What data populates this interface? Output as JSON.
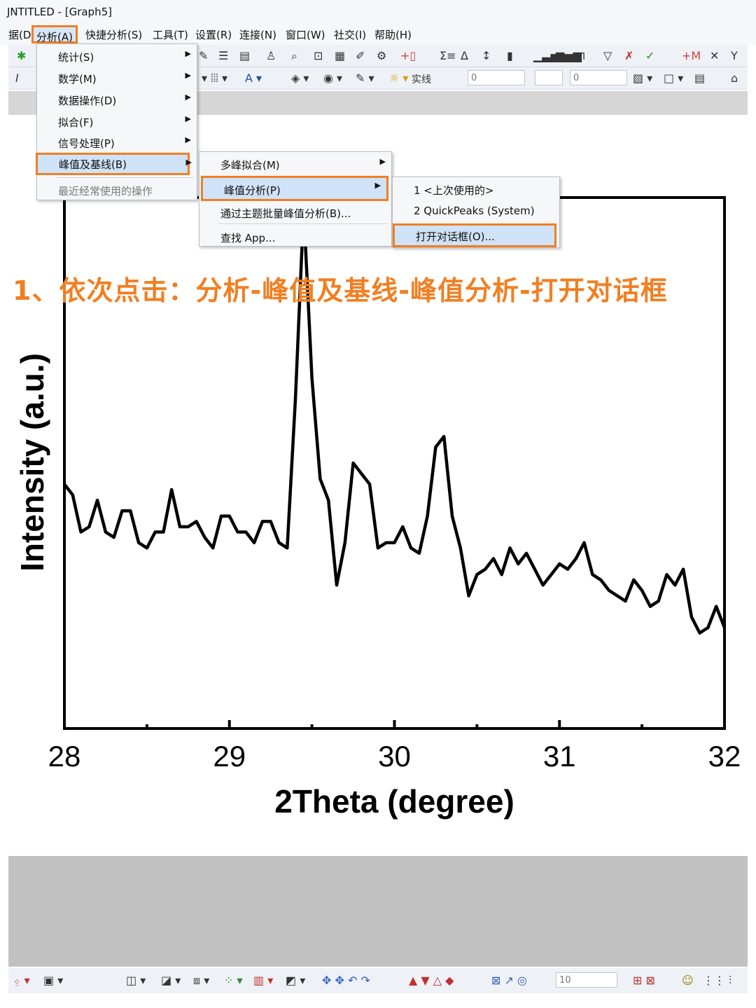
{
  "window": {
    "title": "JNTITLED - [Graph5]"
  },
  "menubar": {
    "items": [
      {
        "label": "据(D)"
      },
      {
        "label": "分析(A)"
      },
      {
        "label": "快捷分析(S)"
      },
      {
        "label": "工具(T)"
      },
      {
        "label": "设置(R)"
      },
      {
        "label": "连接(N)"
      },
      {
        "label": "窗口(W)"
      },
      {
        "label": "社交(I)"
      },
      {
        "label": "帮助(H)"
      }
    ]
  },
  "toolbar2": {
    "line_style": "实线",
    "width_value_1": "0",
    "width_value_2": "0"
  },
  "analysis_menu": {
    "items": [
      {
        "label": "统计(S)"
      },
      {
        "label": "数学(M)"
      },
      {
        "label": "数据操作(D)"
      },
      {
        "label": "拟合(F)"
      },
      {
        "label": "信号处理(P)"
      },
      {
        "label": "峰值及基线(B)"
      },
      {
        "label": "最近经常使用的操作"
      }
    ]
  },
  "peaks_submenu": {
    "items": [
      {
        "label": "多峰拟合(M)"
      },
      {
        "label": "峰值分析(P)"
      },
      {
        "label": "通过主题批量峰值分析(B)..."
      },
      {
        "label": "查找 App..."
      }
    ]
  },
  "peak_analysis_submenu": {
    "items": [
      {
        "label": "1 <上次使用的>"
      },
      {
        "label": "2 QuickPeaks (System)"
      },
      {
        "label": "打开对话框(O)..."
      }
    ]
  },
  "annotation": {
    "text": "1、依次点击：分析-峰值及基线-峰值分析-打开对话框",
    "color": "#f07f22"
  },
  "bottom_toolbar": {
    "zoom_value": "10"
  },
  "chart_data": {
    "type": "line",
    "xlabel": "2Theta (degree)",
    "ylabel": "Intensity (a.u.)",
    "xlim": [
      28,
      32
    ],
    "ylim": [
      0,
      1
    ],
    "xticks": [
      "28",
      "29",
      "30",
      "31",
      "32"
    ],
    "series": [
      {
        "x": [
          28.0,
          28.05,
          28.1,
          28.15,
          28.2,
          28.25,
          28.3,
          28.35,
          28.4,
          28.45,
          28.5,
          28.55,
          28.6,
          28.65,
          28.7,
          28.75,
          28.8,
          28.85,
          28.9,
          28.95,
          29.0,
          29.05,
          29.1,
          29.15,
          29.2,
          29.25,
          29.3,
          29.35,
          29.4,
          29.45,
          29.5,
          29.55,
          29.6,
          29.65,
          29.7,
          29.75,
          29.8,
          29.85,
          29.9,
          29.95,
          30.0,
          30.05,
          30.1,
          30.15,
          30.2,
          30.25,
          30.3,
          30.35,
          30.4,
          30.45,
          30.5,
          30.55,
          30.6,
          30.65,
          30.7,
          30.75,
          30.8,
          30.85,
          30.9,
          30.95,
          31.0,
          31.05,
          31.1,
          31.15,
          31.2,
          31.25,
          31.3,
          31.35,
          31.4,
          31.45,
          31.5,
          31.55,
          31.6,
          31.65,
          31.7,
          31.75,
          31.8,
          31.85,
          31.9,
          31.95,
          32.0
        ],
        "y": [
          0.46,
          0.44,
          0.37,
          0.38,
          0.43,
          0.37,
          0.36,
          0.41,
          0.41,
          0.35,
          0.34,
          0.37,
          0.37,
          0.45,
          0.38,
          0.38,
          0.39,
          0.36,
          0.34,
          0.4,
          0.4,
          0.37,
          0.37,
          0.35,
          0.39,
          0.39,
          0.35,
          0.34,
          0.62,
          0.98,
          0.66,
          0.47,
          0.43,
          0.27,
          0.35,
          0.5,
          0.48,
          0.46,
          0.34,
          0.35,
          0.35,
          0.38,
          0.34,
          0.33,
          0.4,
          0.53,
          0.55,
          0.4,
          0.34,
          0.25,
          0.29,
          0.3,
          0.32,
          0.29,
          0.34,
          0.31,
          0.33,
          0.3,
          0.27,
          0.29,
          0.31,
          0.3,
          0.32,
          0.35,
          0.29,
          0.28,
          0.26,
          0.25,
          0.24,
          0.28,
          0.26,
          0.23,
          0.24,
          0.29,
          0.27,
          0.3,
          0.21,
          0.18,
          0.19,
          0.23,
          0.19
        ]
      }
    ]
  }
}
